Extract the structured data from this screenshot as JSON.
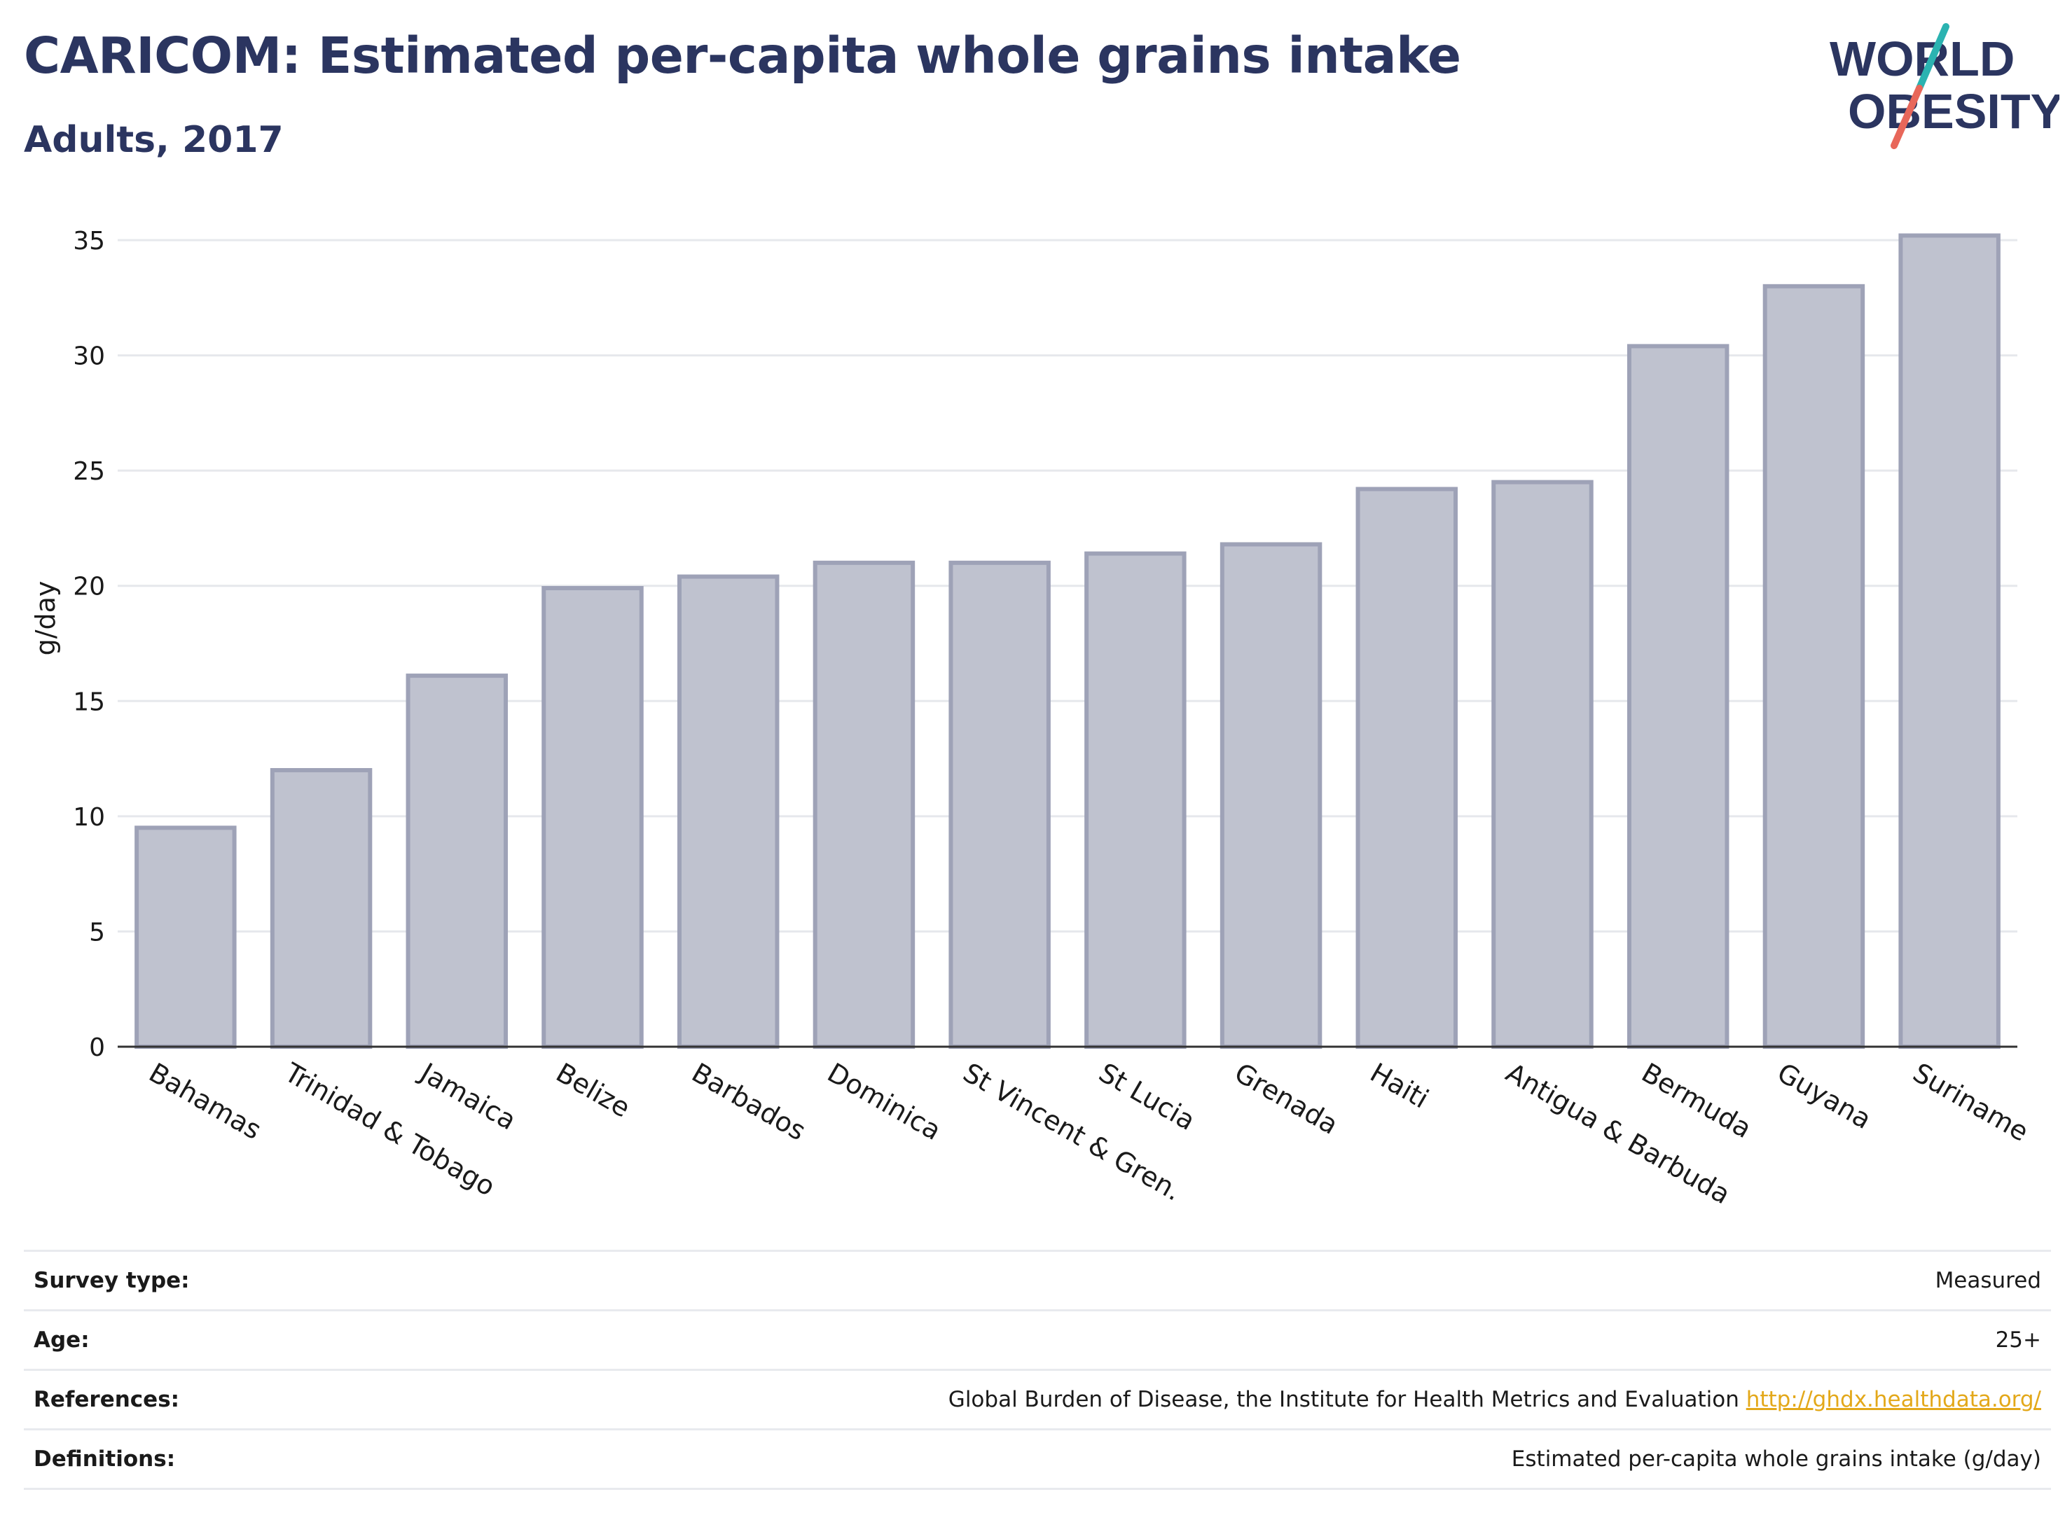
{
  "header": {
    "title": "CARICOM: Estimated per-capita whole grains intake",
    "subtitle": "Adults, 2017"
  },
  "logo": {
    "line1": "WORLD",
    "line2": "OBESITY",
    "colors": {
      "text": "#2b3560",
      "slash_top": "#2bb3b1",
      "slash_bottom": "#e8675a"
    }
  },
  "chart_data": {
    "type": "bar",
    "categories": [
      "Bahamas",
      "Trinidad & Tobago",
      "Jamaica",
      "Belize",
      "Barbados",
      "Dominica",
      "St Vincent & Gren.",
      "St Lucia",
      "Grenada",
      "Haiti",
      "Antigua & Barbuda",
      "Bermuda",
      "Guyana",
      "Suriname"
    ],
    "values": [
      9.5,
      12.0,
      16.1,
      19.9,
      20.4,
      21.0,
      21.0,
      21.4,
      21.8,
      24.2,
      24.5,
      30.4,
      33.0,
      35.2
    ],
    "ylabel": "g/day",
    "ylim": [
      0,
      35
    ],
    "yticks": [
      0,
      5,
      10,
      15,
      20,
      25,
      30,
      35
    ],
    "grid": true,
    "colors": {
      "bar_fill": "#bfc2cf",
      "bar_stroke": "#9ea2b7",
      "grid": "#e6e8ec",
      "axis": "#333333"
    }
  },
  "info": {
    "rows": [
      {
        "label": "Survey type:",
        "value": "Measured"
      },
      {
        "label": "Age:",
        "value": "25+"
      },
      {
        "label": "References:",
        "value": "Global Burden of Disease, the Institute for Health Metrics and Evaluation",
        "link": "http://ghdx.healthdata.org/"
      },
      {
        "label": "Definitions:",
        "value": "Estimated per-capita whole grains intake (g/day)"
      }
    ]
  }
}
